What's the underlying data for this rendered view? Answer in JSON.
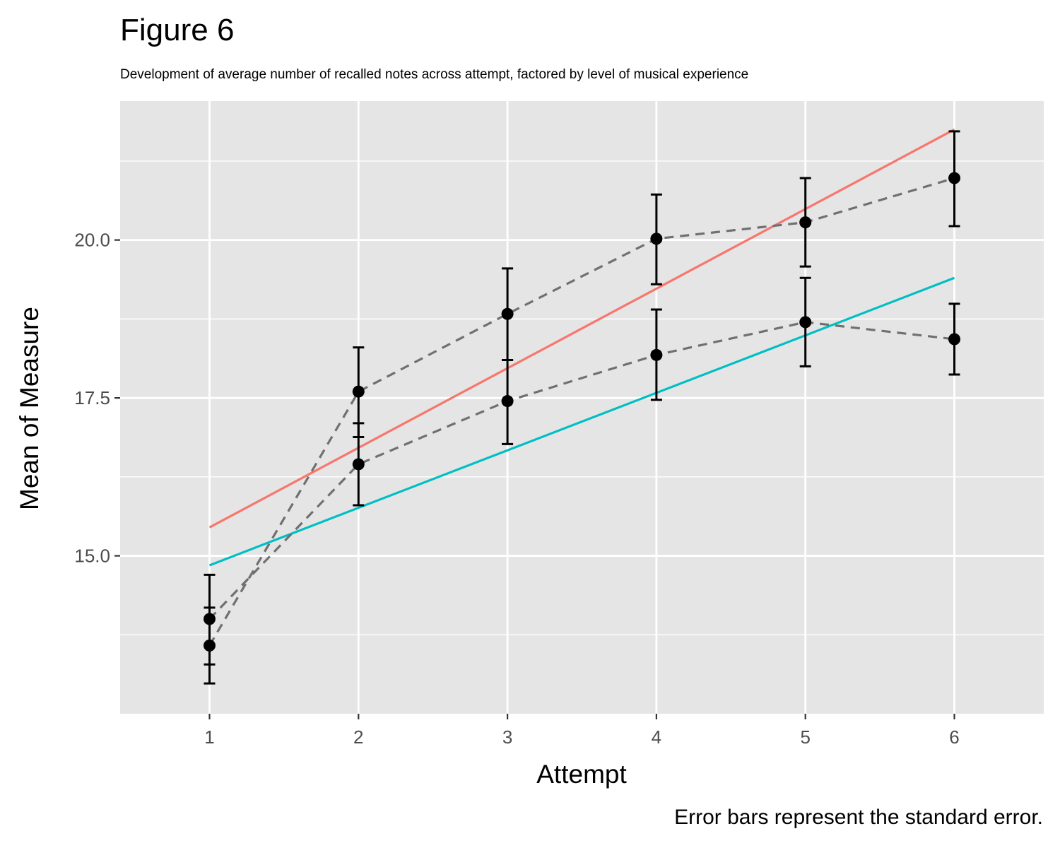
{
  "title": "Figure 6",
  "subtitle": "Development of average number of recalled notes across attempt, factored by level of musical experience",
  "caption": "Error bars represent the standard error.",
  "chart_data": {
    "type": "line",
    "xlabel": "Attempt",
    "ylabel": "Mean of Measure",
    "x_ticks": [
      "1",
      "2",
      "3",
      "4",
      "5",
      "6"
    ],
    "y_ticks": [
      "15.0",
      "17.5",
      "20.0"
    ],
    "y_tick_values": [
      15.0,
      17.5,
      20.0
    ],
    "xlim": [
      0.4,
      6.6
    ],
    "ylim": [
      12.5,
      22.2
    ],
    "grid": true,
    "background": "#e5e5e5",
    "series": [
      {
        "style": "observed-mean-dashed",
        "color": "#707070",
        "points": [
          {
            "x": 1,
            "y": 13.58,
            "ymin": 12.98,
            "ymax": 14.18
          },
          {
            "x": 2,
            "y": 17.6,
            "ymin": 16.88,
            "ymax": 18.3
          },
          {
            "x": 3,
            "y": 18.83,
            "ymin": 18.1,
            "ymax": 19.55
          },
          {
            "x": 4,
            "y": 20.02,
            "ymin": 19.3,
            "ymax": 20.72
          },
          {
            "x": 5,
            "y": 20.28,
            "ymin": 19.58,
            "ymax": 20.98
          },
          {
            "x": 6,
            "y": 20.98,
            "ymin": 20.22,
            "ymax": 21.72
          }
        ]
      },
      {
        "style": "observed-mean-dashed",
        "color": "#707070",
        "points": [
          {
            "x": 1,
            "y": 14.0,
            "ymin": 13.28,
            "ymax": 14.7
          },
          {
            "x": 2,
            "y": 16.45,
            "ymin": 15.8,
            "ymax": 17.1
          },
          {
            "x": 3,
            "y": 17.45,
            "ymin": 16.77,
            "ymax": 18.1
          },
          {
            "x": 4,
            "y": 18.18,
            "ymin": 17.47,
            "ymax": 18.9
          },
          {
            "x": 5,
            "y": 18.7,
            "ymin": 18.0,
            "ymax": 19.4
          },
          {
            "x": 6,
            "y": 18.43,
            "ymin": 17.87,
            "ymax": 18.99
          }
        ]
      }
    ],
    "fit_lines": [
      {
        "color": "#f8766d",
        "x": [
          1,
          6
        ],
        "y": [
          15.45,
          21.75
        ]
      },
      {
        "color": "#00bfc4",
        "x": [
          1,
          6
        ],
        "y": [
          14.85,
          19.4
        ]
      }
    ]
  }
}
